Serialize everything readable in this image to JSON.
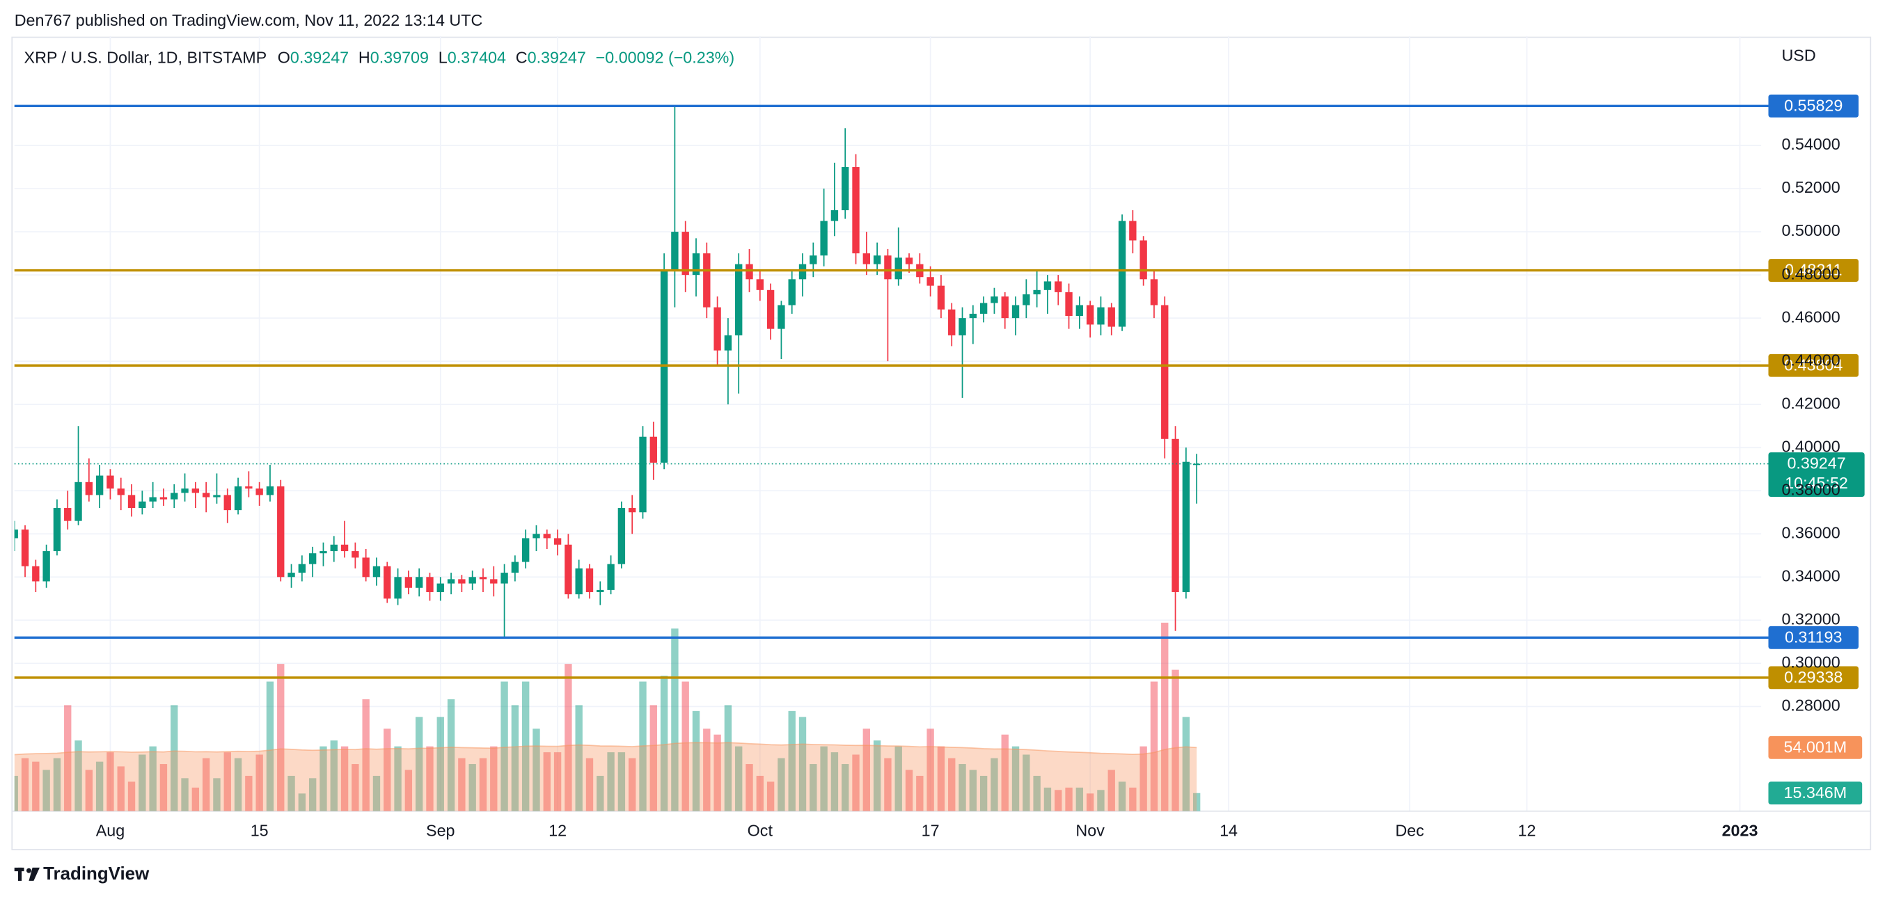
{
  "chart_data": {
    "type": "candlestick",
    "attribution": "Den767 published on TradingView.com, Nov 11, 2022 13:14 UTC",
    "title": "XRP / U.S. Dollar, 1D, BITSTAMP",
    "ohlc_labels": [
      "O",
      "H",
      "L",
      "C"
    ],
    "change": "−0.00092 (−0.23%)",
    "currency": "USD",
    "countdown": "10:45:52",
    "brand": "TradingView",
    "up_color": "#089981",
    "down_color": "#f23645",
    "grid": true,
    "xlim": [
      "2022-07-23",
      "2023-01-03"
    ],
    "ylim": [
      0.2315,
      0.5907
    ],
    "volume_ylim": [
      0,
      658
    ],
    "xticks": [
      {
        "value": "2022-08-01",
        "label": "Aug"
      },
      {
        "value": "2022-08-15",
        "label": "15"
      },
      {
        "value": "2022-09-01",
        "label": "Sep"
      },
      {
        "value": "2022-09-12",
        "label": "12"
      },
      {
        "value": "2022-10-01",
        "label": "Oct"
      },
      {
        "value": "2022-10-17",
        "label": "17"
      },
      {
        "value": "2022-11-01",
        "label": "Nov"
      },
      {
        "value": "2022-11-14",
        "label": "14"
      },
      {
        "value": "2022-12-01",
        "label": "Dec"
      },
      {
        "value": "2022-12-12",
        "label": "12"
      },
      {
        "value": "2023-01-01",
        "label": "2023"
      }
    ],
    "yticks": [
      {
        "value": 0.28,
        "label": "0.28000"
      },
      {
        "value": 0.3,
        "label": "0.30000"
      },
      {
        "value": 0.32,
        "label": "0.32000"
      },
      {
        "value": 0.34,
        "label": "0.34000"
      },
      {
        "value": 0.36,
        "label": "0.36000"
      },
      {
        "value": 0.38,
        "label": "0.38000"
      },
      {
        "value": 0.4,
        "label": "0.40000"
      },
      {
        "value": 0.42,
        "label": "0.42000"
      },
      {
        "value": 0.44,
        "label": "0.44000"
      },
      {
        "value": 0.46,
        "label": "0.46000"
      },
      {
        "value": 0.48,
        "label": "0.48000"
      },
      {
        "value": 0.5,
        "label": "0.50000"
      },
      {
        "value": 0.52,
        "label": "0.52000"
      },
      {
        "value": 0.54,
        "label": "0.54000"
      }
    ],
    "levels": [
      {
        "value": 0.55829,
        "color": "#1f6fd1"
      },
      {
        "value": 0.48211,
        "color": "#bf8f00"
      },
      {
        "value": 0.43804,
        "color": "#bf8f00"
      },
      {
        "value": 0.31193,
        "color": "#1f6fd1"
      },
      {
        "value": 0.29338,
        "color": "#bf8f00"
      }
    ],
    "x": [
      "2022-07-23",
      "2022-07-24",
      "2022-07-25",
      "2022-07-26",
      "2022-07-27",
      "2022-07-28",
      "2022-07-29",
      "2022-07-30",
      "2022-07-31",
      "2022-08-01",
      "2022-08-02",
      "2022-08-03",
      "2022-08-04",
      "2022-08-05",
      "2022-08-06",
      "2022-08-07",
      "2022-08-08",
      "2022-08-09",
      "2022-08-10",
      "2022-08-11",
      "2022-08-12",
      "2022-08-13",
      "2022-08-14",
      "2022-08-15",
      "2022-08-16",
      "2022-08-17",
      "2022-08-18",
      "2022-08-19",
      "2022-08-20",
      "2022-08-21",
      "2022-08-22",
      "2022-08-23",
      "2022-08-24",
      "2022-08-25",
      "2022-08-26",
      "2022-08-27",
      "2022-08-28",
      "2022-08-29",
      "2022-08-30",
      "2022-08-31",
      "2022-09-01",
      "2022-09-02",
      "2022-09-03",
      "2022-09-04",
      "2022-09-05",
      "2022-09-06",
      "2022-09-07",
      "2022-09-08",
      "2022-09-09",
      "2022-09-10",
      "2022-09-11",
      "2022-09-12",
      "2022-09-13",
      "2022-09-14",
      "2022-09-15",
      "2022-09-16",
      "2022-09-17",
      "2022-09-18",
      "2022-09-19",
      "2022-09-20",
      "2022-09-21",
      "2022-09-22",
      "2022-09-23",
      "2022-09-24",
      "2022-09-25",
      "2022-09-26",
      "2022-09-27",
      "2022-09-28",
      "2022-09-29",
      "2022-09-30",
      "2022-10-01",
      "2022-10-02",
      "2022-10-03",
      "2022-10-04",
      "2022-10-05",
      "2022-10-06",
      "2022-10-07",
      "2022-10-08",
      "2022-10-09",
      "2022-10-10",
      "2022-10-11",
      "2022-10-12",
      "2022-10-13",
      "2022-10-14",
      "2022-10-15",
      "2022-10-16",
      "2022-10-17",
      "2022-10-18",
      "2022-10-19",
      "2022-10-20",
      "2022-10-21",
      "2022-10-22",
      "2022-10-23",
      "2022-10-24",
      "2022-10-25",
      "2022-10-26",
      "2022-10-27",
      "2022-10-28",
      "2022-10-29",
      "2022-10-30",
      "2022-10-31",
      "2022-11-01",
      "2022-11-02",
      "2022-11-03",
      "2022-11-04",
      "2022-11-05",
      "2022-11-06",
      "2022-11-07",
      "2022-11-08",
      "2022-11-09",
      "2022-11-10",
      "2022-11-11"
    ],
    "open": [
      0.358,
      0.362,
      0.345,
      0.338,
      0.352,
      0.372,
      0.366,
      0.384,
      0.378,
      0.387,
      0.381,
      0.378,
      0.372,
      0.375,
      0.377,
      0.376,
      0.379,
      0.381,
      0.379,
      0.377,
      0.378,
      0.371,
      0.382,
      0.381,
      0.378,
      0.382,
      0.34,
      0.342,
      0.346,
      0.351,
      0.352,
      0.355,
      0.352,
      0.349,
      0.34,
      0.345,
      0.33,
      0.34,
      0.335,
      0.34,
      0.333,
      0.337,
      0.339,
      0.337,
      0.34,
      0.339,
      0.337,
      0.342,
      0.347,
      0.358,
      0.36,
      0.358,
      0.355,
      0.332,
      0.344,
      0.333,
      0.334,
      0.346,
      0.372,
      0.37,
      0.405,
      0.393,
      0.482,
      0.5,
      0.48,
      0.49,
      0.465,
      0.445,
      0.452,
      0.485,
      0.478,
      0.473,
      0.455,
      0.466,
      0.478,
      0.485,
      0.489,
      0.505,
      0.51,
      0.53,
      0.49,
      0.485,
      0.489,
      0.478,
      0.488,
      0.485,
      0.479,
      0.475,
      0.464,
      0.452,
      0.46,
      0.462,
      0.467,
      0.47,
      0.46,
      0.466,
      0.471,
      0.473,
      0.477,
      0.472,
      0.461,
      0.466,
      0.457,
      0.465,
      0.456,
      0.505,
      0.496,
      0.478,
      0.466,
      0.404,
      0.333,
      0.39247
    ],
    "high": [
      0.366,
      0.364,
      0.348,
      0.355,
      0.376,
      0.38,
      0.41,
      0.395,
      0.392,
      0.39,
      0.386,
      0.383,
      0.38,
      0.384,
      0.381,
      0.383,
      0.388,
      0.384,
      0.384,
      0.388,
      0.381,
      0.386,
      0.389,
      0.384,
      0.392,
      0.385,
      0.346,
      0.35,
      0.354,
      0.356,
      0.359,
      0.366,
      0.356,
      0.353,
      0.349,
      0.347,
      0.344,
      0.343,
      0.344,
      0.342,
      0.34,
      0.342,
      0.341,
      0.343,
      0.344,
      0.345,
      0.346,
      0.35,
      0.362,
      0.364,
      0.362,
      0.362,
      0.36,
      0.348,
      0.346,
      0.338,
      0.35,
      0.375,
      0.378,
      0.41,
      0.412,
      0.49,
      0.558,
      0.505,
      0.497,
      0.495,
      0.47,
      0.46,
      0.49,
      0.492,
      0.482,
      0.476,
      0.468,
      0.482,
      0.49,
      0.495,
      0.52,
      0.532,
      0.548,
      0.536,
      0.5,
      0.495,
      0.492,
      0.502,
      0.49,
      0.49,
      0.484,
      0.48,
      0.467,
      0.465,
      0.466,
      0.47,
      0.474,
      0.472,
      0.47,
      0.478,
      0.482,
      0.48,
      0.48,
      0.476,
      0.47,
      0.468,
      0.47,
      0.467,
      0.508,
      0.51,
      0.498,
      0.482,
      0.47,
      0.41,
      0.4,
      0.39709
    ],
    "low": [
      0.352,
      0.34,
      0.333,
      0.335,
      0.35,
      0.362,
      0.364,
      0.375,
      0.372,
      0.376,
      0.371,
      0.368,
      0.369,
      0.372,
      0.373,
      0.372,
      0.375,
      0.372,
      0.37,
      0.374,
      0.365,
      0.369,
      0.377,
      0.373,
      0.375,
      0.338,
      0.335,
      0.338,
      0.34,
      0.345,
      0.347,
      0.349,
      0.344,
      0.338,
      0.336,
      0.328,
      0.327,
      0.332,
      0.331,
      0.329,
      0.329,
      0.332,
      0.333,
      0.334,
      0.333,
      0.331,
      0.312,
      0.338,
      0.344,
      0.352,
      0.353,
      0.35,
      0.33,
      0.33,
      0.33,
      0.327,
      0.332,
      0.344,
      0.36,
      0.367,
      0.385,
      0.39,
      0.465,
      0.472,
      0.47,
      0.46,
      0.438,
      0.42,
      0.425,
      0.472,
      0.468,
      0.45,
      0.441,
      0.462,
      0.47,
      0.479,
      0.484,
      0.498,
      0.506,
      0.485,
      0.48,
      0.48,
      0.44,
      0.475,
      0.481,
      0.476,
      0.47,
      0.46,
      0.447,
      0.423,
      0.448,
      0.458,
      0.462,
      0.455,
      0.452,
      0.46,
      0.465,
      0.462,
      0.466,
      0.455,
      0.455,
      0.451,
      0.452,
      0.452,
      0.454,
      0.49,
      0.475,
      0.46,
      0.395,
      0.315,
      0.33,
      0.37404
    ],
    "close": [
      0.362,
      0.345,
      0.338,
      0.352,
      0.372,
      0.366,
      0.384,
      0.378,
      0.387,
      0.381,
      0.378,
      0.372,
      0.375,
      0.377,
      0.376,
      0.379,
      0.381,
      0.379,
      0.377,
      0.378,
      0.371,
      0.382,
      0.381,
      0.378,
      0.382,
      0.34,
      0.342,
      0.346,
      0.351,
      0.352,
      0.355,
      0.352,
      0.349,
      0.34,
      0.345,
      0.33,
      0.34,
      0.335,
      0.34,
      0.333,
      0.337,
      0.339,
      0.337,
      0.34,
      0.339,
      0.337,
      0.342,
      0.347,
      0.358,
      0.36,
      0.358,
      0.355,
      0.332,
      0.344,
      0.333,
      0.334,
      0.346,
      0.372,
      0.37,
      0.405,
      0.393,
      0.482,
      0.5,
      0.48,
      0.49,
      0.465,
      0.445,
      0.452,
      0.485,
      0.478,
      0.473,
      0.455,
      0.466,
      0.478,
      0.485,
      0.489,
      0.505,
      0.51,
      0.53,
      0.49,
      0.485,
      0.489,
      0.478,
      0.488,
      0.485,
      0.479,
      0.475,
      0.464,
      0.452,
      0.46,
      0.462,
      0.467,
      0.47,
      0.46,
      0.466,
      0.471,
      0.473,
      0.477,
      0.472,
      0.461,
      0.466,
      0.457,
      0.465,
      0.456,
      0.505,
      0.496,
      0.478,
      0.466,
      0.404,
      0.333,
      0.39339,
      0.39247
    ],
    "volume": {
      "values": [
        30,
        45,
        42,
        35,
        45,
        90,
        60,
        35,
        42,
        50,
        38,
        25,
        48,
        55,
        40,
        90,
        28,
        20,
        45,
        28,
        50,
        45,
        30,
        48,
        110,
        125,
        30,
        15,
        28,
        55,
        60,
        55,
        40,
        95,
        30,
        70,
        55,
        35,
        80,
        55,
        80,
        95,
        45,
        40,
        45,
        55,
        110,
        90,
        110,
        70,
        50,
        50,
        125,
        90,
        45,
        30,
        50,
        50,
        45,
        110,
        90,
        115,
        155,
        110,
        85,
        70,
        65,
        90,
        55,
        40,
        30,
        25,
        45,
        85,
        80,
        40,
        55,
        50,
        40,
        48,
        70,
        60,
        45,
        55,
        35,
        30,
        70,
        55,
        45,
        40,
        35,
        30,
        45,
        65,
        55,
        48,
        30,
        20,
        18,
        20,
        20,
        15,
        18,
        35,
        25,
        20,
        55,
        110,
        160,
        120,
        80,
        15.346
      ],
      "last_label": "15.346M",
      "color": "#22ab94"
    },
    "volume_ma": {
      "values": [
        48,
        48.5,
        48.8,
        49,
        49.2,
        50,
        50.5,
        50.3,
        50.4,
        50.6,
        50.4,
        50.1,
        50.2,
        50.5,
        50.3,
        51,
        50.8,
        50.4,
        50.5,
        50.3,
        50.6,
        50.8,
        50.6,
        50.9,
        51.8,
        52.9,
        52.5,
        52,
        51.7,
        51.9,
        52.2,
        52.4,
        52.3,
        53,
        52.6,
        53,
        53.2,
        52.9,
        53.4,
        53.5,
        53.8,
        54.3,
        54,
        53.8,
        53.6,
        53.5,
        54.2,
        54.6,
        55.2,
        55.3,
        55.1,
        55,
        55.8,
        56.2,
        55.9,
        55.4,
        55.3,
        55.1,
        54.8,
        55.4,
        55.8,
        56.4,
        57.5,
        58,
        58.2,
        58.1,
        57.9,
        58.2,
        57.8,
        57.3,
        56.9,
        56.4,
        56.2,
        56.5,
        56.9,
        56.6,
        56.4,
        56.3,
        56,
        55.8,
        55.9,
        55.6,
        55.4,
        55.3,
        55,
        54.6,
        54.8,
        54.5,
        54.2,
        54,
        53.6,
        53.1,
        52.8,
        52.9,
        52.6,
        52.3,
        51.8,
        51.2,
        50.7,
        50.3,
        50,
        49.6,
        49.1,
        48.9,
        48.6,
        48.2,
        48.5,
        49.8,
        52.4,
        53.8,
        54.6,
        54.001
      ],
      "last_label": "54.001M",
      "color": "#f7935b"
    }
  }
}
